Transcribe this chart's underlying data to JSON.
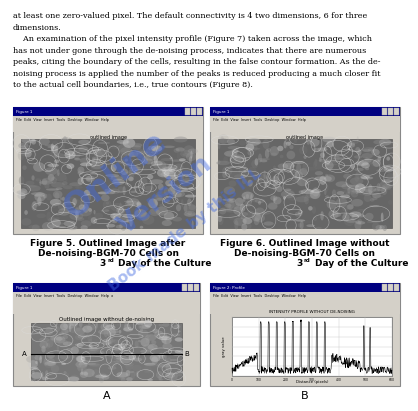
{
  "background_color": "#ffffff",
  "text_lines": [
    "at least one zero-valued pixel. The default connectivity is 4 two dimensions, 6 for three",
    "dimensions.",
    "    An examination of the pixel intensity profile (Figure 7) taken across the image, which",
    "has not under gone through the de-noising process, indicates that there are numerous",
    "peaks, citing the boundary of the cells, resulting in the false contour formation. As the de-",
    "noising process is applied the number of the peaks is reduced producing a much closer fit",
    "to the actual cell boundaries, i.e., true contours (Figure 8)."
  ],
  "fig5_caption": [
    "Figure 5. Outlined Image after",
    "De-noising-BGM-70 Cells on",
    "3rd Day of the Culture"
  ],
  "fig6_caption": [
    "Figure 6. Outlined Image without",
    "De-noising-BGM-70 Cells on",
    "3rd Day of the Culture"
  ],
  "label_A": "A",
  "label_B": "B",
  "panel_A_title": "Outlined image without de-noising",
  "panel_B_title": "INTENSITY PROFILE WITHOUT DE-NOISING",
  "watermark_color": "#4169E1",
  "watermark_alpha": 0.45,
  "win_bg": "#d4d0c8",
  "titlebar_color": "#000080",
  "img_gray": "#888888"
}
